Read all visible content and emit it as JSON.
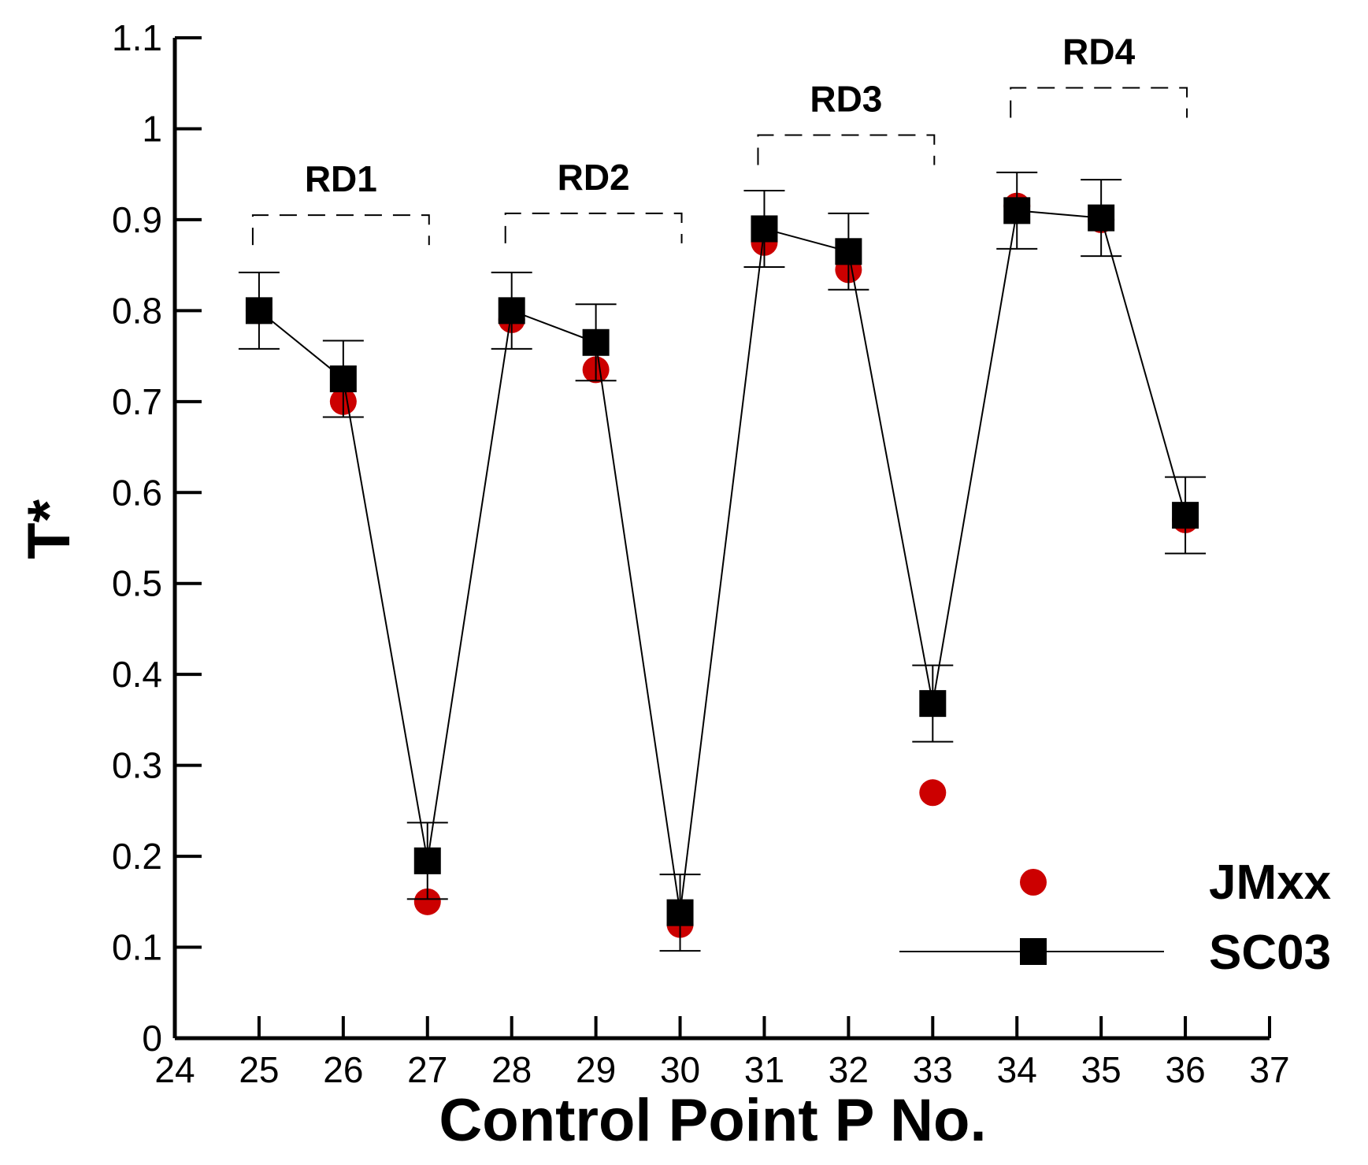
{
  "chart_data": {
    "type": "scatter",
    "xlabel": "Control Point P No.",
    "ylabel": "T*",
    "xlim": [
      24,
      37
    ],
    "ylim": [
      0,
      1.1
    ],
    "x_ticks": [
      "24",
      "25",
      "26",
      "27",
      "28",
      "29",
      "30",
      "31",
      "32",
      "33",
      "34",
      "35",
      "36",
      "37"
    ],
    "y_ticks": [
      "0",
      "0.1",
      "0.2",
      "0.3",
      "0.4",
      "0.5",
      "0.6",
      "0.7",
      "0.8",
      "0.9",
      "1",
      "1.1"
    ],
    "grid": false,
    "legend_position": "bottom-right",
    "series": [
      {
        "name": "JMxx",
        "style": "markers",
        "marker": "circle",
        "color": "#cc0000",
        "x": [
          25,
          26,
          27,
          28,
          29,
          30,
          31,
          32,
          33,
          34,
          35,
          36
        ],
        "y": [
          0.8,
          0.7,
          0.15,
          0.79,
          0.735,
          0.125,
          0.875,
          0.845,
          0.27,
          0.915,
          0.9,
          0.57
        ]
      },
      {
        "name": "SC03",
        "style": "line+markers",
        "marker": "square",
        "color": "#000000",
        "x": [
          25,
          26,
          27,
          28,
          29,
          30,
          31,
          32,
          33,
          34,
          35,
          36
        ],
        "y": [
          0.8,
          0.725,
          0.195,
          0.8,
          0.765,
          0.138,
          0.89,
          0.865,
          0.368,
          0.91,
          0.902,
          0.575
        ],
        "error": [
          0.042,
          0.042,
          0.042,
          0.042,
          0.042,
          0.042,
          0.042,
          0.042,
          0.042,
          0.042,
          0.042,
          0.042
        ]
      }
    ],
    "annotations": [
      {
        "label": "RD1",
        "x_start": 25,
        "x_end": 27,
        "y": 0.905
      },
      {
        "label": "RD2",
        "x_start": 28,
        "x_end": 30,
        "y": 0.907
      },
      {
        "label": "RD3",
        "x_start": 31,
        "x_end": 33,
        "y": 0.993
      },
      {
        "label": "RD4",
        "x_start": 34,
        "x_end": 36,
        "y": 1.045
      }
    ]
  }
}
